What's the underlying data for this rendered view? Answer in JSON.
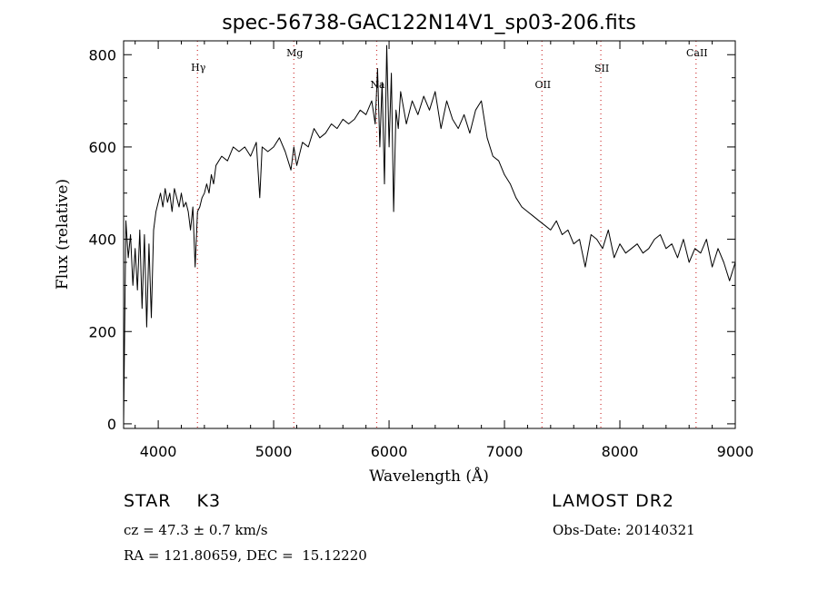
{
  "chart_data": {
    "type": "line",
    "title": "spec-56738-GAC122N14V1_sp03-206.fits",
    "xlabel": "Wavelength (Å)",
    "ylabel": "Flux (relative)",
    "xlim": [
      3700,
      9000
    ],
    "ylim": [
      -10,
      830
    ],
    "x_ticks": [
      4000,
      5000,
      6000,
      7000,
      8000,
      9000
    ],
    "y_ticks": [
      0,
      200,
      400,
      600,
      800
    ],
    "grid": false,
    "line_color": "#000000",
    "marker_color": "#cc3333",
    "line_markers": [
      {
        "label": "Hγ",
        "x": 4340
      },
      {
        "label": "Mg",
        "x": 5175
      },
      {
        "label": "Na",
        "x": 5893
      },
      {
        "label": "OII",
        "x": 7325
      },
      {
        "label": "SII",
        "x": 7835
      },
      {
        "label": "CaII",
        "x": 8660
      }
    ],
    "series": [
      {
        "x": [
          3700,
          3720,
          3740,
          3760,
          3780,
          3800,
          3820,
          3840,
          3860,
          3880,
          3900,
          3920,
          3940,
          3960,
          3980,
          4000,
          4020,
          4040,
          4060,
          4080,
          4100,
          4120,
          4140,
          4160,
          4180,
          4200,
          4220,
          4240,
          4260,
          4280,
          4300,
          4320,
          4340,
          4360,
          4380,
          4400,
          4420,
          4440,
          4460,
          4480,
          4500,
          4550,
          4600,
          4650,
          4700,
          4750,
          4800,
          4850,
          4880,
          4900,
          4950,
          5000,
          5050,
          5100,
          5150,
          5175,
          5200,
          5250,
          5300,
          5350,
          5400,
          5450,
          5500,
          5550,
          5600,
          5650,
          5700,
          5750,
          5800,
          5850,
          5880,
          5900,
          5920,
          5940,
          5960,
          5980,
          6000,
          6020,
          6040,
          6060,
          6080,
          6100,
          6150,
          6200,
          6250,
          6300,
          6350,
          6400,
          6450,
          6500,
          6550,
          6600,
          6650,
          6700,
          6750,
          6800,
          6850,
          6900,
          6950,
          7000,
          7050,
          7100,
          7150,
          7200,
          7250,
          7300,
          7350,
          7400,
          7450,
          7500,
          7550,
          7600,
          7650,
          7700,
          7750,
          7800,
          7850,
          7900,
          7950,
          8000,
          8050,
          8100,
          8150,
          8200,
          8250,
          8300,
          8350,
          8400,
          8450,
          8500,
          8550,
          8600,
          8650,
          8700,
          8750,
          8800,
          8850,
          8900,
          8950,
          9000
        ],
        "y": [
          0,
          440,
          360,
          410,
          300,
          380,
          290,
          420,
          250,
          410,
          210,
          390,
          230,
          420,
          460,
          480,
          500,
          470,
          510,
          480,
          500,
          460,
          510,
          490,
          470,
          500,
          470,
          480,
          460,
          420,
          470,
          340,
          460,
          470,
          490,
          500,
          520,
          500,
          540,
          520,
          560,
          580,
          570,
          600,
          590,
          600,
          580,
          610,
          490,
          600,
          590,
          600,
          620,
          590,
          550,
          600,
          560,
          610,
          600,
          640,
          620,
          630,
          650,
          640,
          660,
          650,
          660,
          680,
          670,
          700,
          650,
          770,
          600,
          740,
          520,
          820,
          600,
          760,
          460,
          680,
          640,
          720,
          650,
          700,
          670,
          710,
          680,
          720,
          640,
          700,
          660,
          640,
          670,
          630,
          680,
          700,
          620,
          580,
          570,
          540,
          520,
          490,
          470,
          460,
          450,
          440,
          430,
          420,
          440,
          410,
          420,
          390,
          400,
          340,
          410,
          400,
          380,
          420,
          360,
          390,
          370,
          380,
          390,
          370,
          380,
          400,
          410,
          380,
          390,
          360,
          400,
          350,
          380,
          370,
          400,
          340,
          380,
          350,
          310,
          350
        ]
      }
    ]
  },
  "info": {
    "class_line": "STAR    K3",
    "cz_line": "cz = 47.3 ± 0.7 km/s",
    "radec_line": "RA = 121.80659, DEC =  15.12220",
    "survey": "LAMOST DR2",
    "obs_date": "Obs-Date: 20140321"
  }
}
